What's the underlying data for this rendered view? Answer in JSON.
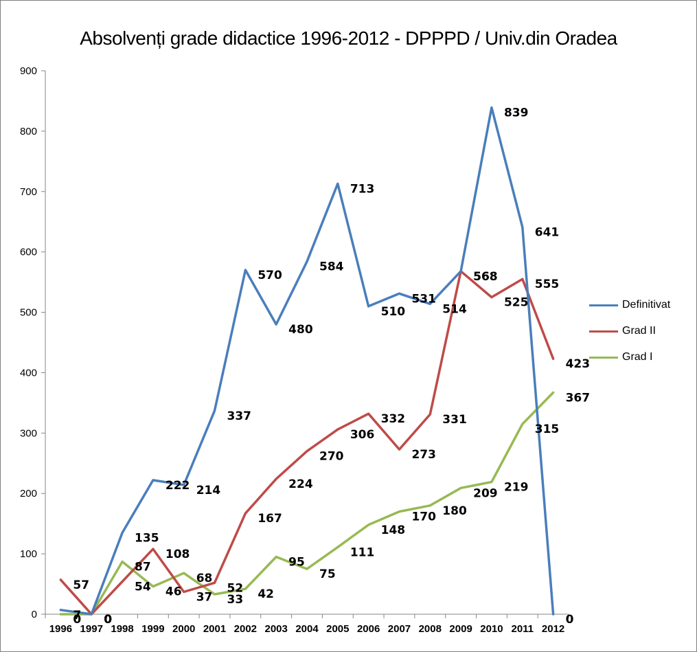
{
  "chart_data": {
    "type": "line",
    "title": "Absolvenți grade didactice 1996-2012 - DPPPD / Univ.din Oradea",
    "categories": [
      "1996",
      "1997",
      "1998",
      "1999",
      "2000",
      "2001",
      "2002",
      "2003",
      "2004",
      "2005",
      "2006",
      "2007",
      "2008",
      "2009",
      "2010",
      "2011",
      "2012"
    ],
    "ylim": [
      0,
      900
    ],
    "yticks": [
      0,
      100,
      200,
      300,
      400,
      500,
      600,
      700,
      800,
      900
    ],
    "grid": false,
    "legend_position": "right",
    "series": [
      {
        "name": "Definitivat",
        "color": "#4a7ebb",
        "values": [
          7,
          0,
          135,
          222,
          214,
          337,
          570,
          480,
          584,
          713,
          510,
          531,
          514,
          568,
          839,
          641,
          0
        ]
      },
      {
        "name": "Grad II",
        "color": "#be4b48",
        "values": [
          57,
          0,
          54,
          108,
          37,
          52,
          167,
          224,
          270,
          306,
          332,
          273,
          331,
          568,
          525,
          555,
          423
        ]
      },
      {
        "name": "Grad I",
        "color": "#98b954",
        "values": [
          0,
          0,
          87,
          46,
          68,
          33,
          42,
          95,
          75,
          111,
          148,
          170,
          180,
          209,
          219,
          315,
          367
        ]
      }
    ]
  }
}
